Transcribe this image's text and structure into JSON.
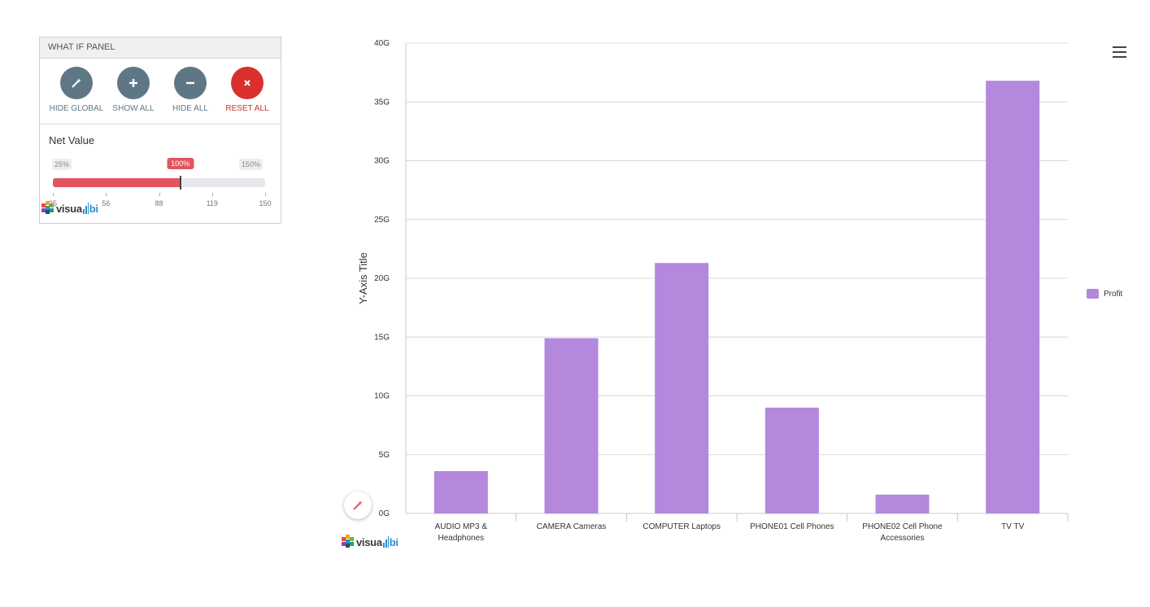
{
  "panel": {
    "title": "WHAT IF PANEL",
    "buttons": [
      {
        "label": "HIDE GLOBAL",
        "icon": "magic-wand-icon"
      },
      {
        "label": "SHOW ALL",
        "icon": "plus-icon"
      },
      {
        "label": "HIDE ALL",
        "icon": "minus-icon"
      },
      {
        "label": "RESET ALL",
        "icon": "close-icon"
      }
    ],
    "slider": {
      "title": "Net Value",
      "min_label": "25%",
      "max_label": "150%",
      "current_label": "100%",
      "min": 25,
      "max": 150,
      "value": 100,
      "ticks": [
        "25",
        "56",
        "88",
        "119",
        "150"
      ]
    }
  },
  "logo": {
    "text_left": "visua",
    "text_right": "bi"
  },
  "colors": {
    "bar": "#b388dd",
    "accent_red": "#e2555f",
    "button_grey": "#5f7785",
    "reset_red": "#d9302e"
  },
  "chart_data": {
    "type": "bar",
    "categories": [
      "AUDIO MP3 & Headphones",
      "CAMERA Cameras",
      "COMPUTER Laptops",
      "PHONE01 Cell Phones",
      "PHONE02 Cell Phone Accessories",
      "TV TV"
    ],
    "category_lines": [
      [
        "AUDIO MP3 &",
        "Headphones"
      ],
      [
        "CAMERA Cameras"
      ],
      [
        "COMPUTER Laptops"
      ],
      [
        "PHONE01 Cell Phones"
      ],
      [
        "PHONE02 Cell Phone",
        "Accessories"
      ],
      [
        "TV TV"
      ]
    ],
    "series": [
      {
        "name": "Profit",
        "values": [
          3.6,
          14.9,
          21.3,
          9.0,
          1.6,
          36.8
        ]
      }
    ],
    "ylabel": "Y-Axis Title",
    "ylim": [
      0,
      40
    ],
    "yticks": [
      0,
      5,
      10,
      15,
      20,
      25,
      30,
      35,
      40
    ],
    "ytick_labels": [
      "0G",
      "5G",
      "10G",
      "15G",
      "20G",
      "25G",
      "30G",
      "35G",
      "40G"
    ],
    "grid": true,
    "legend_position": "right"
  }
}
